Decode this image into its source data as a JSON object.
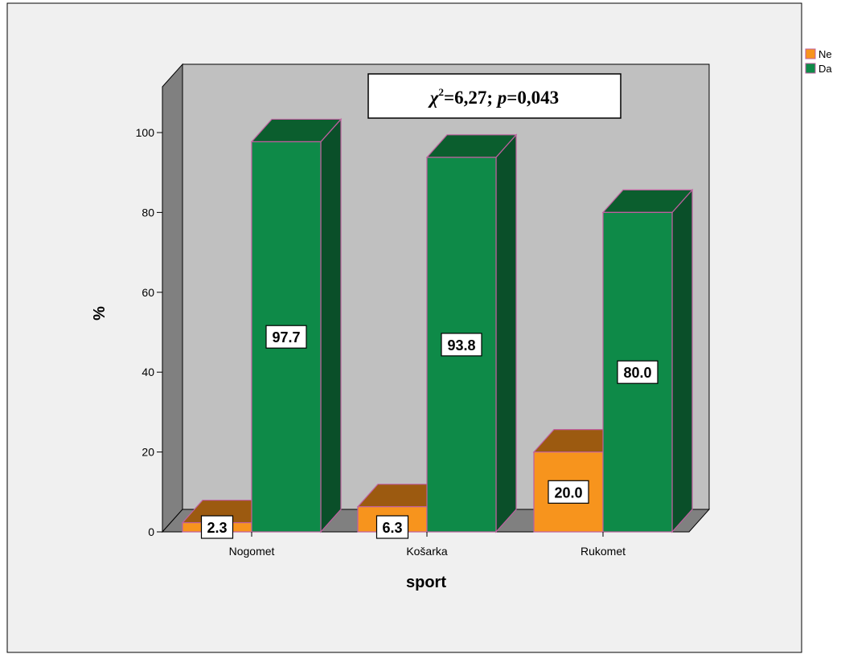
{
  "chart_data": {
    "type": "bar",
    "categories": [
      "Nogomet",
      "Košarka",
      "Rukomet"
    ],
    "series": [
      {
        "name": "Ne",
        "values": [
          2.3,
          6.3,
          20.0
        ],
        "color": "#F7941D",
        "top_color": "#9C5A10",
        "side_color": "#A8610F"
      },
      {
        "name": "Da",
        "values": [
          97.7,
          93.8,
          80.0
        ],
        "color": "#0E8A48",
        "top_color": "#0B5E2E",
        "side_color": "#0A4F29"
      }
    ],
    "data_labels": [
      [
        "2.3",
        "6.3",
        "20.0"
      ],
      [
        "97.7",
        "93.8",
        "80.0"
      ]
    ],
    "xlabel": "sport",
    "ylabel": "%",
    "yticks": [
      "0",
      "20",
      "40",
      "60",
      "80",
      "100"
    ],
    "ylim": [
      0,
      110
    ],
    "annotation": {
      "chi": "χ",
      "sup": "2",
      "stat": "=6,27; ",
      "p": "p",
      "pval": "=0,043"
    },
    "legend": [
      "Ne",
      "Da"
    ],
    "legend_position": "top-right",
    "bar_style": "3d",
    "grid": false,
    "colors": {
      "outer_background": "#F0F0F0",
      "plot_background": "#C0C0C0",
      "left_wall": "#808080",
      "floor": "#808080",
      "bar_outline": "#C060A0"
    }
  }
}
